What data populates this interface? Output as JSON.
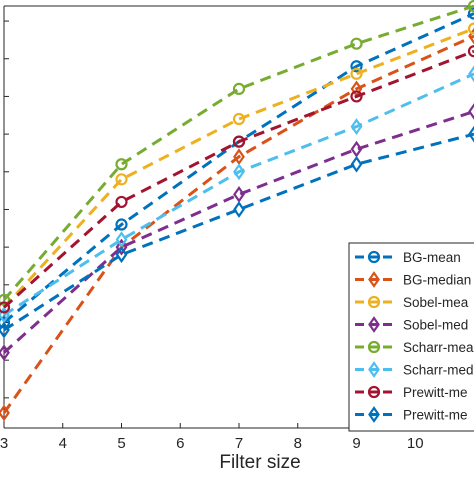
{
  "chart_data": {
    "type": "line",
    "title": "",
    "xlabel": "Filter size",
    "ylabel": "",
    "xlim": [
      3,
      11
    ],
    "ylim": [
      0.36,
      0.92
    ],
    "x_ticks": [
      "3",
      "4",
      "5",
      "6",
      "7",
      "8",
      "9",
      "10"
    ],
    "x": [
      3,
      5,
      7,
      9,
      11
    ],
    "grid": false,
    "legend_position": "bottom-right",
    "series": [
      {
        "name": "BG-mean",
        "color": "#0072bd",
        "marker": "circle",
        "values": [
          0.5,
          0.63,
          0.74,
          0.84,
          0.91
        ]
      },
      {
        "name": "BG-median",
        "color": "#d95319",
        "marker": "diamond",
        "values": [
          0.38,
          0.6,
          0.72,
          0.81,
          0.88
        ]
      },
      {
        "name": "Sobel-mea",
        "color": "#edb120",
        "marker": "circle",
        "values": [
          0.52,
          0.69,
          0.77,
          0.83,
          0.89
        ]
      },
      {
        "name": "Sobel-med",
        "color": "#7e2f8e",
        "marker": "diamond",
        "values": [
          0.46,
          0.6,
          0.67,
          0.73,
          0.78
        ]
      },
      {
        "name": "Scharr-mea",
        "color": "#77ac30",
        "marker": "circle",
        "values": [
          0.53,
          0.71,
          0.81,
          0.87,
          0.92
        ]
      },
      {
        "name": "Scharr-med",
        "color": "#4dbeee",
        "marker": "diamond",
        "values": [
          0.51,
          0.61,
          0.7,
          0.76,
          0.83
        ]
      },
      {
        "name": "Prewitt-me",
        "color": "#a2142f",
        "marker": "circle",
        "values": [
          0.52,
          0.66,
          0.74,
          0.8,
          0.86
        ]
      },
      {
        "name": "Prewitt-me",
        "color": "#0072bd",
        "marker": "diamond",
        "values": [
          0.49,
          0.59,
          0.65,
          0.71,
          0.75
        ]
      }
    ]
  }
}
